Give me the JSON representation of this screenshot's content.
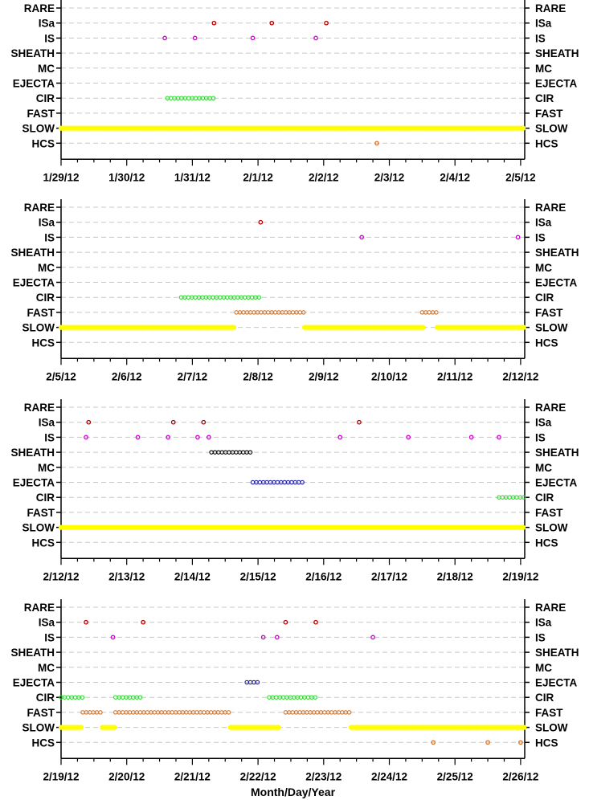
{
  "chart_data": [
    {
      "type": "scatter",
      "categories": [
        "RARE",
        "ISa",
        "IS",
        "SHEATH",
        "MC",
        "EJECTA",
        "CIR",
        "FAST",
        "SLOW",
        "HCS"
      ],
      "x_start": "1/29/12",
      "x_ticks": [
        "1/29/12",
        "1/30/12",
        "1/31/12",
        "2/1/12",
        "2/2/12",
        "2/3/12",
        "2/4/12",
        "2/5/12"
      ],
      "xlim_days": [
        0,
        7.1
      ],
      "grid": "dashed horizontal",
      "points": [
        {
          "cat": "ISa",
          "day": 2.33,
          "color": "#b30000"
        },
        {
          "cat": "ISa",
          "day": 3.21,
          "color": "#b30000"
        },
        {
          "cat": "ISa",
          "day": 4.04,
          "color": "#b30000"
        },
        {
          "cat": "IS",
          "day": 1.58,
          "color": "#cc00cc"
        },
        {
          "cat": "IS",
          "day": 2.04,
          "color": "#cc00cc"
        },
        {
          "cat": "IS",
          "day": 2.92,
          "color": "#cc00cc"
        },
        {
          "cat": "IS",
          "day": 3.88,
          "color": "#cc00cc"
        },
        {
          "cat": "HCS",
          "day": 4.81,
          "color": "#e07020"
        }
      ],
      "segments": [
        {
          "cat": "CIR",
          "start": 1.62,
          "end": 2.33,
          "color": "#22dd22"
        },
        {
          "cat": "SLOW",
          "start": 0.0,
          "end": 7.1,
          "color": "#ffff00"
        }
      ]
    },
    {
      "type": "scatter",
      "categories": [
        "RARE",
        "ISa",
        "IS",
        "SHEATH",
        "MC",
        "EJECTA",
        "CIR",
        "FAST",
        "SLOW",
        "HCS"
      ],
      "x_start": "2/5/12",
      "x_ticks": [
        "2/5/12",
        "2/6/12",
        "2/7/12",
        "2/8/12",
        "2/9/12",
        "2/10/12",
        "2/11/12",
        "2/12/12"
      ],
      "xlim_days": [
        0,
        7.1
      ],
      "grid": "dashed horizontal",
      "points": [
        {
          "cat": "ISa",
          "day": 3.04,
          "color": "#b30000"
        },
        {
          "cat": "IS",
          "day": 4.58,
          "color": "#cc00cc"
        },
        {
          "cat": "IS",
          "day": 6.96,
          "color": "#cc00cc"
        }
      ],
      "segments": [
        {
          "cat": "CIR",
          "start": 1.83,
          "end": 3.04,
          "color": "#22dd22"
        },
        {
          "cat": "FAST",
          "start": 2.67,
          "end": 3.71,
          "color": "#cc7733"
        },
        {
          "cat": "FAST",
          "start": 5.5,
          "end": 5.75,
          "color": "#cc7733"
        },
        {
          "cat": "SLOW",
          "start": 0.0,
          "end": 2.65,
          "color": "#ffff00"
        },
        {
          "cat": "SLOW",
          "start": 3.71,
          "end": 5.52,
          "color": "#ffff00"
        },
        {
          "cat": "SLOW",
          "start": 5.73,
          "end": 7.1,
          "color": "#ffff00"
        }
      ]
    },
    {
      "type": "scatter",
      "categories": [
        "RARE",
        "ISa",
        "IS",
        "SHEATH",
        "MC",
        "EJECTA",
        "CIR",
        "FAST",
        "SLOW",
        "HCS"
      ],
      "x_start": "2/12/12",
      "x_ticks": [
        "2/12/12",
        "2/13/12",
        "2/14/12",
        "2/15/12",
        "2/16/12",
        "2/17/12",
        "2/18/12",
        "2/19/12"
      ],
      "xlim_days": [
        0,
        7.1
      ],
      "grid": "dashed horizontal",
      "points": [
        {
          "cat": "ISa",
          "day": 0.42,
          "color": "#b30000"
        },
        {
          "cat": "ISa",
          "day": 1.71,
          "color": "#b30000"
        },
        {
          "cat": "ISa",
          "day": 2.17,
          "color": "#b30000"
        },
        {
          "cat": "ISa",
          "day": 4.54,
          "color": "#b30000"
        },
        {
          "cat": "IS",
          "day": 0.38,
          "color": "#cc00cc"
        },
        {
          "cat": "IS",
          "day": 1.17,
          "color": "#cc00cc"
        },
        {
          "cat": "IS",
          "day": 1.63,
          "color": "#cc00cc"
        },
        {
          "cat": "IS",
          "day": 2.08,
          "color": "#cc00cc"
        },
        {
          "cat": "IS",
          "day": 2.25,
          "color": "#cc00cc"
        },
        {
          "cat": "IS",
          "day": 4.25,
          "color": "#cc00cc"
        },
        {
          "cat": "IS",
          "day": 5.29,
          "color": "#cc00cc"
        },
        {
          "cat": "IS",
          "day": 6.25,
          "color": "#cc00cc"
        },
        {
          "cat": "IS",
          "day": 6.67,
          "color": "#cc00cc"
        }
      ],
      "segments": [
        {
          "cat": "SHEATH",
          "start": 2.29,
          "end": 2.92,
          "color": "#000000"
        },
        {
          "cat": "EJECTA",
          "start": 2.92,
          "end": 3.71,
          "color": "#1a1aaa"
        },
        {
          "cat": "CIR",
          "start": 6.67,
          "end": 7.1,
          "color": "#22dd22"
        },
        {
          "cat": "SLOW",
          "start": 0.0,
          "end": 7.1,
          "color": "#ffff00"
        }
      ]
    },
    {
      "type": "scatter",
      "categories": [
        "RARE",
        "ISa",
        "IS",
        "SHEATH",
        "MC",
        "EJECTA",
        "CIR",
        "FAST",
        "SLOW",
        "HCS"
      ],
      "x_start": "2/19/12",
      "x_ticks": [
        "2/19/12",
        "2/20/12",
        "2/21/12",
        "2/22/12",
        "2/23/12",
        "2/24/12",
        "2/25/12",
        "2/26/12"
      ],
      "xlim_days": [
        0,
        7.1
      ],
      "grid": "dashed horizontal",
      "xlabel": "Month/Day/Year",
      "points": [
        {
          "cat": "ISa",
          "day": 0.38,
          "color": "#b30000"
        },
        {
          "cat": "ISa",
          "day": 1.25,
          "color": "#b30000"
        },
        {
          "cat": "ISa",
          "day": 3.42,
          "color": "#b30000"
        },
        {
          "cat": "ISa",
          "day": 3.88,
          "color": "#b30000"
        },
        {
          "cat": "IS",
          "day": 0.79,
          "color": "#cc00cc"
        },
        {
          "cat": "IS",
          "day": 3.08,
          "color": "#cc00cc"
        },
        {
          "cat": "IS",
          "day": 3.29,
          "color": "#cc00cc"
        },
        {
          "cat": "IS",
          "day": 4.75,
          "color": "#cc00cc"
        },
        {
          "cat": "HCS",
          "day": 5.67,
          "color": "#e07020"
        },
        {
          "cat": "HCS",
          "day": 6.5,
          "color": "#e07020"
        },
        {
          "cat": "HCS",
          "day": 7.0,
          "color": "#e07020"
        }
      ],
      "segments": [
        {
          "cat": "EJECTA",
          "start": 2.83,
          "end": 3.04,
          "color": "#1a1aaa"
        },
        {
          "cat": "CIR",
          "start": 0.0,
          "end": 0.33,
          "color": "#22dd22"
        },
        {
          "cat": "CIR",
          "start": 0.83,
          "end": 1.25,
          "color": "#22dd22"
        },
        {
          "cat": "CIR",
          "start": 3.17,
          "end": 3.92,
          "color": "#22dd22"
        },
        {
          "cat": "FAST",
          "start": 0.33,
          "end": 0.63,
          "color": "#cc7733"
        },
        {
          "cat": "FAST",
          "start": 0.83,
          "end": 2.58,
          "color": "#cc7733"
        },
        {
          "cat": "FAST",
          "start": 3.42,
          "end": 4.42,
          "color": "#cc7733"
        },
        {
          "cat": "SLOW",
          "start": 0.0,
          "end": 0.33,
          "color": "#ffff00"
        },
        {
          "cat": "SLOW",
          "start": 0.63,
          "end": 0.83,
          "color": "#ffff00"
        },
        {
          "cat": "SLOW",
          "start": 2.58,
          "end": 3.33,
          "color": "#ffff00"
        },
        {
          "cat": "SLOW",
          "start": 4.42,
          "end": 7.1,
          "color": "#ffff00"
        }
      ]
    }
  ]
}
